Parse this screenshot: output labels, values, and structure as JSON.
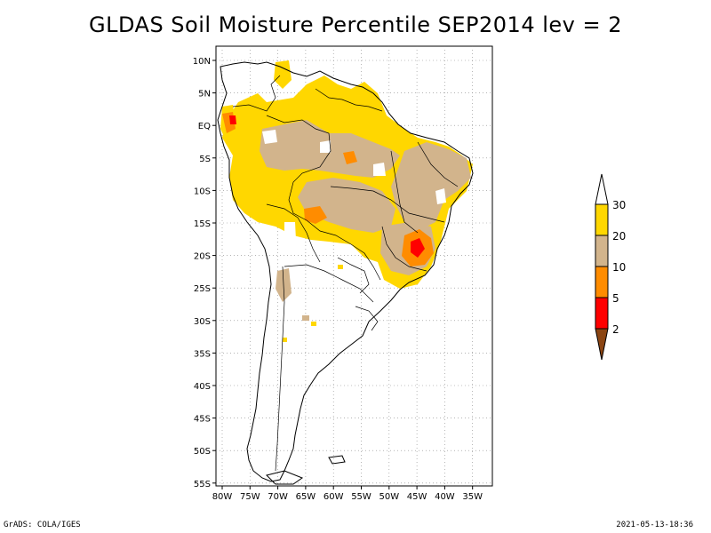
{
  "title": "GLDAS Soil Moisture Percentile SEP2014 lev = 2",
  "footer": {
    "left": "GrADS: COLA/IGES",
    "right": "2021-05-13-18:36"
  },
  "axes": {
    "lat_labels": [
      "10N",
      "5N",
      "EQ",
      "5S",
      "10S",
      "15S",
      "20S",
      "25S",
      "30S",
      "35S",
      "40S",
      "45S",
      "50S",
      "55S"
    ],
    "lon_labels": [
      "80W",
      "75W",
      "70W",
      "65W",
      "60W",
      "55W",
      "50W",
      "45W",
      "40W",
      "35W"
    ]
  },
  "colorbar": {
    "labels": [
      "30",
      "20",
      "10",
      "5",
      "2"
    ],
    "colors": {
      "above30": "#ffffff",
      "c20_30": "#ffd700",
      "c10_20": "#d2b48c",
      "c5_10": "#ff8c00",
      "c2_5": "#ff0000",
      "below2": "#8b4513"
    }
  }
}
